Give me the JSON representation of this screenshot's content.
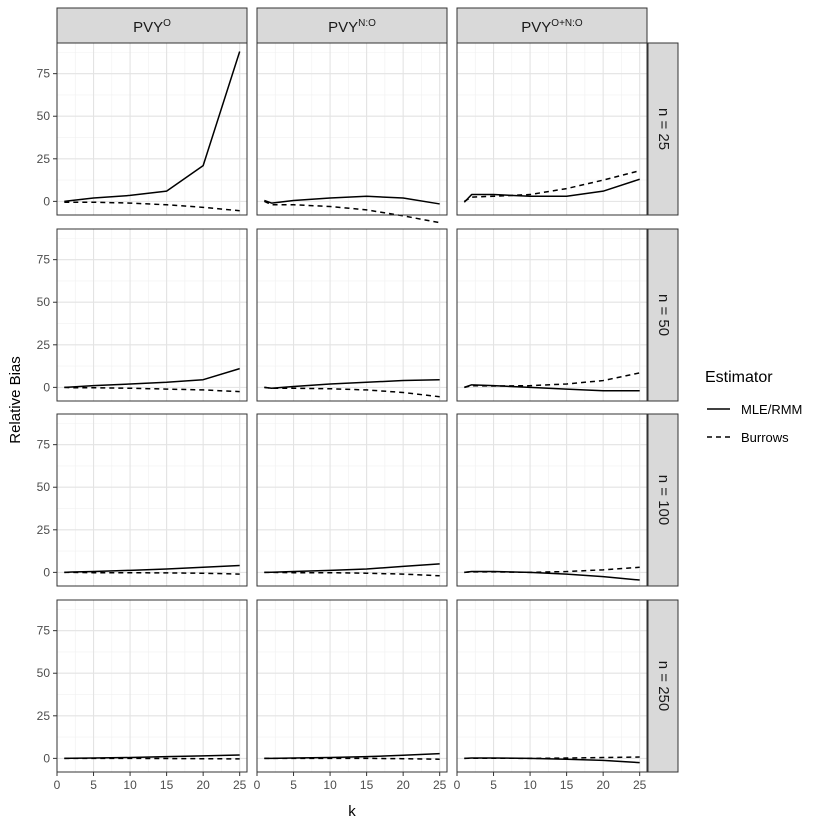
{
  "chart_data": {
    "type": "line",
    "facet_columns": [
      {
        "base": "PVY",
        "sup": "O"
      },
      {
        "base": "PVY",
        "sup": "N:O"
      },
      {
        "base": "PVY",
        "sup": "O+N:O"
      }
    ],
    "facet_rows": [
      "n = 25",
      "n = 50",
      "n = 100",
      "n = 250"
    ],
    "xlabel": "k",
    "ylabel": "Relative Bias",
    "x_ticks": [
      0,
      5,
      10,
      15,
      20,
      25
    ],
    "y_ticks": [
      0,
      25,
      50,
      75
    ],
    "xlim": [
      0,
      26
    ],
    "ylim": [
      -8,
      93
    ],
    "grid": true,
    "legend": {
      "title": "Estimator",
      "position": "right",
      "entries": [
        {
          "name": "MLE/RMM",
          "linetype": "solid"
        },
        {
          "name": "Burrows",
          "linetype": "dashed"
        }
      ]
    },
    "x": [
      1,
      2,
      5,
      10,
      15,
      20,
      25
    ],
    "panels": [
      [
        {
          "series": [
            {
              "name": "MLE/RMM",
              "values": [
                0,
                0.5,
                2,
                3.5,
                6,
                21,
                88
              ]
            },
            {
              "name": "Burrows",
              "values": [
                -0.5,
                -0.5,
                -0.5,
                -1,
                -2,
                -3.5,
                -5.5
              ]
            }
          ]
        },
        {
          "series": [
            {
              "name": "MLE/RMM",
              "values": [
                0.5,
                -1,
                0.5,
                2,
                3,
                2,
                -1.5
              ]
            },
            {
              "name": "Burrows",
              "values": [
                0,
                -2,
                -2,
                -3,
                -5,
                -8.5,
                -12.5
              ]
            }
          ]
        },
        {
          "series": [
            {
              "name": "MLE/RMM",
              "values": [
                -0.5,
                4,
                4,
                3,
                3,
                6,
                13
              ]
            },
            {
              "name": "Burrows",
              "values": [
                0,
                2.5,
                3,
                4,
                7.5,
                12.5,
                18
              ]
            }
          ]
        }
      ],
      [
        {
          "series": [
            {
              "name": "MLE/RMM",
              "values": [
                0,
                0.2,
                1,
                2,
                3,
                4.5,
                11
              ]
            },
            {
              "name": "Burrows",
              "values": [
                0,
                -0.2,
                -0.2,
                -0.5,
                -1,
                -1.5,
                -2.5
              ]
            }
          ]
        },
        {
          "series": [
            {
              "name": "MLE/RMM",
              "values": [
                0,
                -0.5,
                0.5,
                2,
                3,
                4,
                4.5
              ]
            },
            {
              "name": "Burrows",
              "values": [
                0,
                -0.5,
                -0.5,
                -0.8,
                -1.5,
                -3,
                -5.5
              ]
            }
          ]
        },
        {
          "series": [
            {
              "name": "MLE/RMM",
              "values": [
                0,
                1.5,
                1,
                0,
                -1,
                -2,
                -2
              ]
            },
            {
              "name": "Burrows",
              "values": [
                0,
                1,
                0.8,
                1,
                2,
                4,
                8.5
              ]
            }
          ]
        }
      ],
      [
        {
          "series": [
            {
              "name": "MLE/RMM",
              "values": [
                0,
                0.2,
                0.5,
                1.2,
                2,
                3,
                4
              ]
            },
            {
              "name": "Burrows",
              "values": [
                0,
                0,
                -0.2,
                -0.2,
                -0.3,
                -0.5,
                -1
              ]
            }
          ]
        },
        {
          "series": [
            {
              "name": "MLE/RMM",
              "values": [
                0,
                0.1,
                0.5,
                1.2,
                2,
                3.5,
                5
              ]
            },
            {
              "name": "Burrows",
              "values": [
                0,
                0,
                -0.2,
                -0.2,
                -0.5,
                -1,
                -2
              ]
            }
          ]
        },
        {
          "series": [
            {
              "name": "MLE/RMM",
              "values": [
                0,
                0.5,
                0.5,
                0,
                -1,
                -2.5,
                -4.5
              ]
            },
            {
              "name": "Burrows",
              "values": [
                0,
                0.3,
                0.3,
                0,
                0.5,
                1.5,
                3
              ]
            }
          ]
        }
      ],
      [
        {
          "series": [
            {
              "name": "MLE/RMM",
              "values": [
                0,
                0.1,
                0.2,
                0.5,
                1,
                1.5,
                2
              ]
            },
            {
              "name": "Burrows",
              "values": [
                0,
                0,
                0,
                0,
                -0.1,
                -0.2,
                -0.3
              ]
            }
          ]
        },
        {
          "series": [
            {
              "name": "MLE/RMM",
              "values": [
                0,
                0,
                0.2,
                0.5,
                1,
                1.8,
                2.8
              ]
            },
            {
              "name": "Burrows",
              "values": [
                0,
                0,
                0,
                0,
                0,
                -0.2,
                -0.5
              ]
            }
          ]
        },
        {
          "series": [
            {
              "name": "MLE/RMM",
              "values": [
                0,
                0.2,
                0.2,
                0,
                -0.5,
                -1.2,
                -2.5
              ]
            },
            {
              "name": "Burrows",
              "values": [
                0,
                0.1,
                0.1,
                0,
                0.2,
                0.5,
                0.8
              ]
            }
          ]
        }
      ]
    ]
  }
}
